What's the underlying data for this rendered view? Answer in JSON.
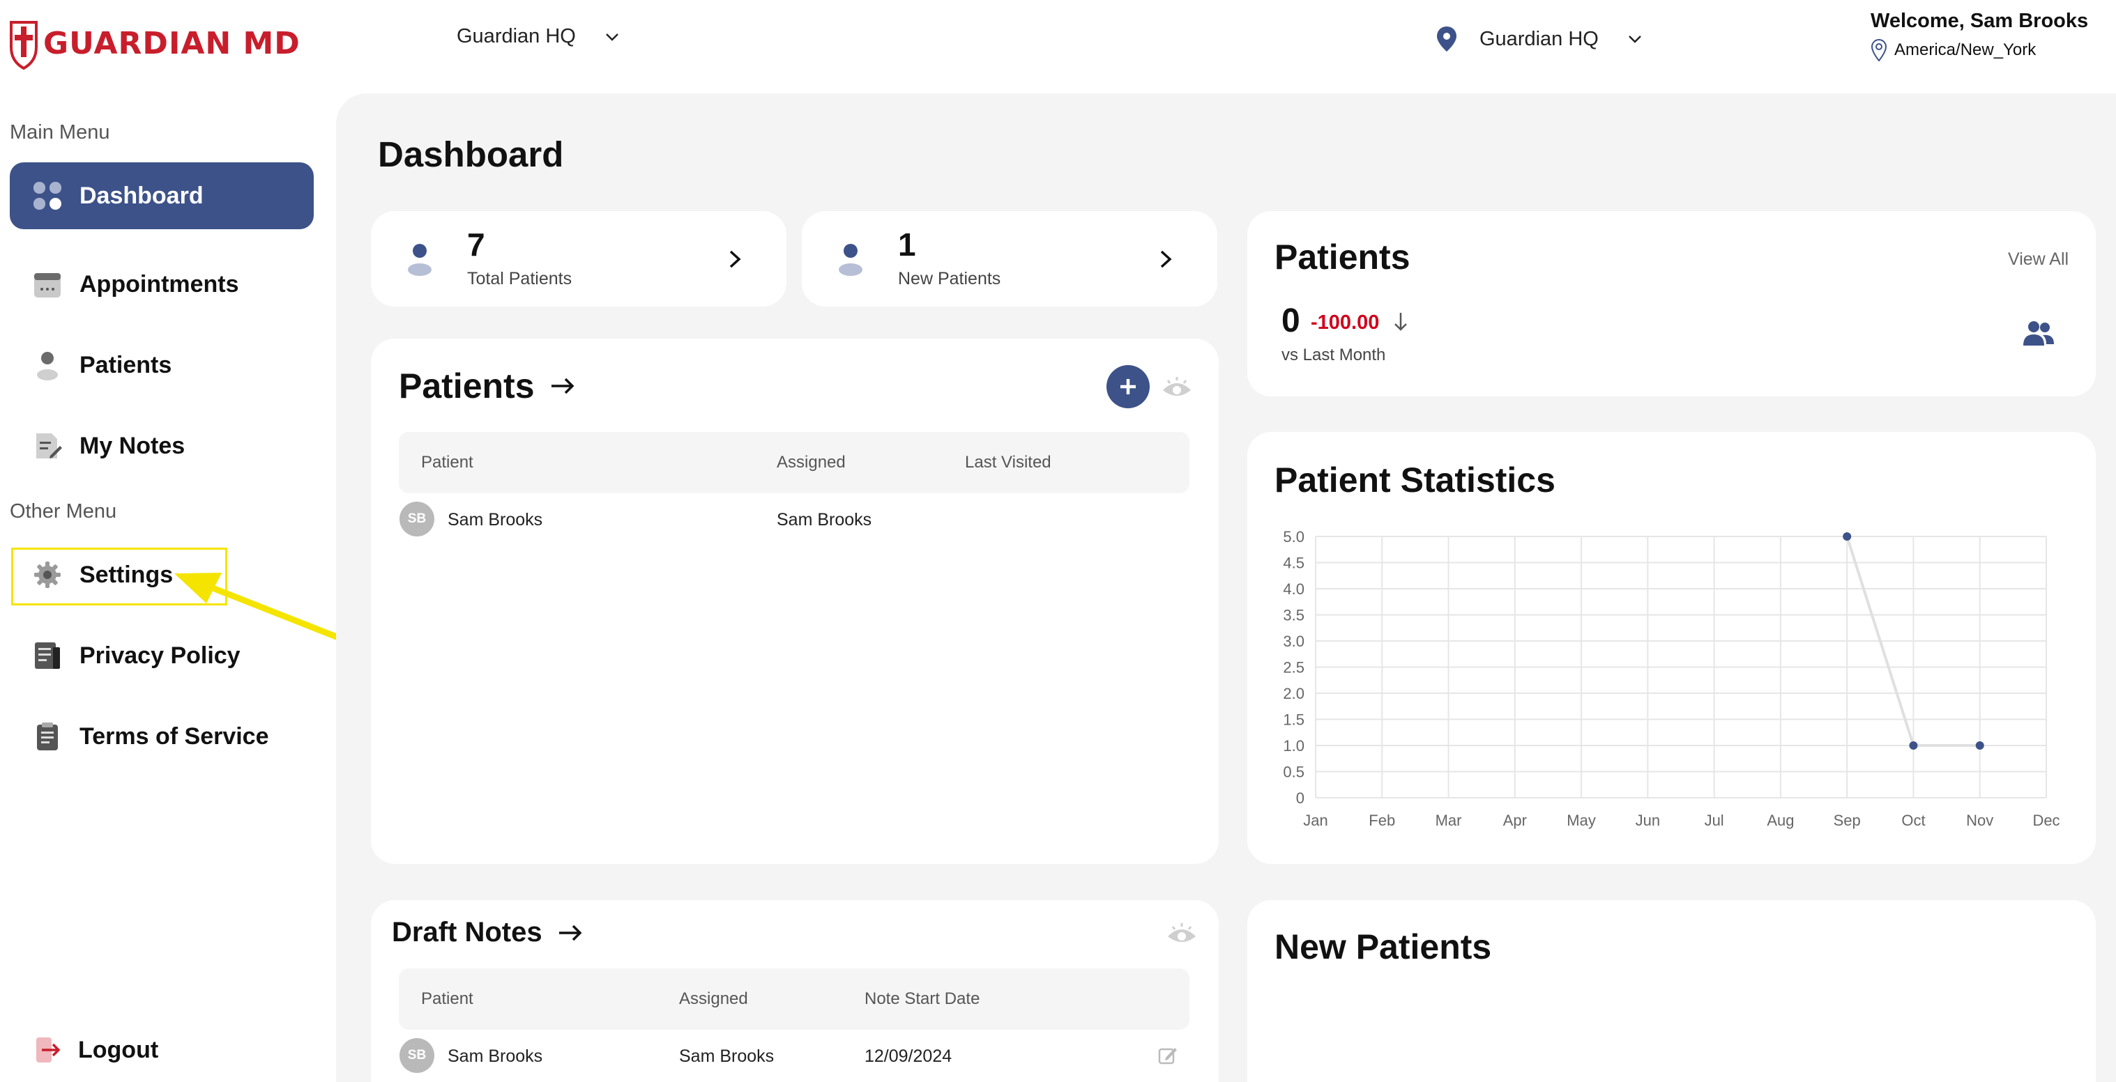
{
  "header": {
    "logo_text": "GUARDIAN MD",
    "location_select": "Guardian HQ",
    "org_select": "Guardian HQ",
    "welcome": "Welcome, Sam Brooks",
    "timezone": "America/New_York"
  },
  "sidebar": {
    "main_menu_title": "Main Menu",
    "other_menu_title": "Other Menu",
    "items": [
      {
        "label": "Dashboard",
        "icon": "dashboard-grid-icon",
        "active": true
      },
      {
        "label": "Appointments",
        "icon": "calendar-icon"
      },
      {
        "label": "Patients",
        "icon": "person-icon"
      },
      {
        "label": "My Notes",
        "icon": "notes-icon"
      }
    ],
    "other_items": [
      {
        "label": "Settings",
        "icon": "gear-icon"
      },
      {
        "label": "Privacy Policy",
        "icon": "document-icon"
      },
      {
        "label": "Terms of Service",
        "icon": "clipboard-icon"
      }
    ],
    "logout": "Logout"
  },
  "page": {
    "title": "Dashboard"
  },
  "stats": [
    {
      "value": "7",
      "label": "Total Patients"
    },
    {
      "value": "1",
      "label": "New Patients"
    }
  ],
  "patients_table": {
    "title": "Patients",
    "columns": [
      "Patient",
      "Assigned",
      "Last Visited"
    ],
    "rows": [
      {
        "initials": "SB",
        "patient": "Sam Brooks",
        "assigned": "Sam Brooks",
        "last_visited": ""
      }
    ]
  },
  "draft_notes": {
    "title": "Draft Notes",
    "columns": [
      "Patient",
      "Assigned",
      "Note Start Date"
    ],
    "rows": [
      {
        "initials": "SB",
        "patient": "Sam Brooks",
        "assigned": "Sam Brooks",
        "date": "12/09/2024"
      }
    ]
  },
  "patients_summary": {
    "title": "Patients",
    "view_all": "View All",
    "value": "0",
    "delta": "-100.00",
    "compare": "vs Last Month"
  },
  "new_patients": {
    "title": "New Patients"
  },
  "colors": {
    "accent": "#3d5289",
    "brand_red": "#c81e2c",
    "negative": "#d0021b",
    "highlight": "#f5e400"
  },
  "chart_data": {
    "type": "line",
    "title": "Patient Statistics",
    "categories": [
      "Jan",
      "Feb",
      "Mar",
      "Apr",
      "May",
      "Jun",
      "Jul",
      "Aug",
      "Sep",
      "Oct",
      "Nov",
      "Dec"
    ],
    "values": [
      null,
      null,
      null,
      null,
      null,
      null,
      null,
      null,
      5,
      1,
      1,
      null
    ],
    "yticks": [
      "0",
      "0.5",
      "1.0",
      "1.5",
      "2.0",
      "2.5",
      "3.0",
      "3.5",
      "4.0",
      "4.5",
      "5.0"
    ],
    "ylim": [
      0,
      5
    ],
    "grid": true,
    "xlabel": "",
    "ylabel": ""
  }
}
